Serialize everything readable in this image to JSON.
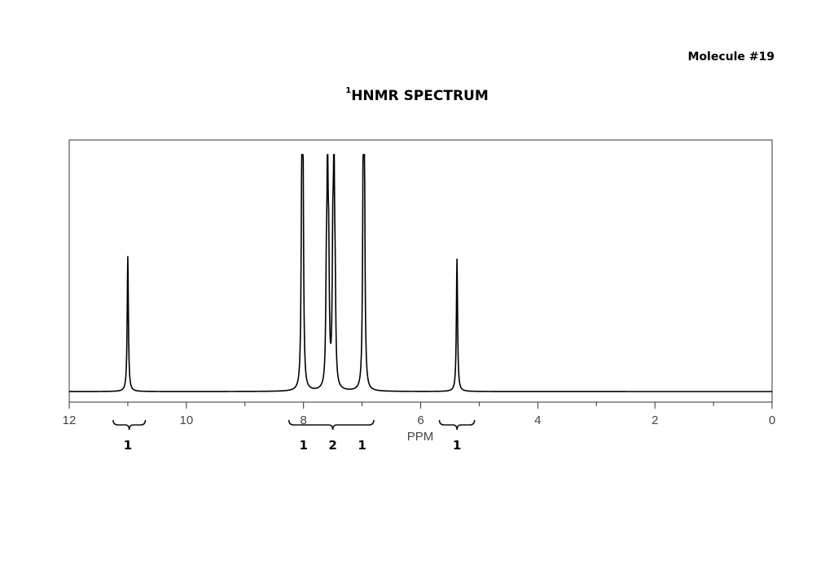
{
  "header": {
    "molecule": "Molecule #19",
    "title_sup": "1",
    "title_main": "HNMR SPECTRUM"
  },
  "chart_data": {
    "type": "line",
    "xlabel": "PPM",
    "ylabel": "",
    "xlim": [
      12,
      0
    ],
    "ylim": [
      0,
      1
    ],
    "x_reversed": true,
    "grid": false,
    "x_ticks_labeled": [
      12,
      10,
      8,
      6,
      4,
      2,
      0
    ],
    "peaks": [
      {
        "ppm": 11.0,
        "height": 0.56
      },
      {
        "ppm": 8.03,
        "height": 0.8
      },
      {
        "ppm": 8.01,
        "height": 0.95
      },
      {
        "ppm": 7.61,
        "height": 0.37
      },
      {
        "ppm": 7.59,
        "height": 0.85
      },
      {
        "ppm": 7.57,
        "height": 0.45
      },
      {
        "ppm": 7.5,
        "height": 0.5
      },
      {
        "ppm": 7.48,
        "height": 0.88
      },
      {
        "ppm": 7.46,
        "height": 0.32
      },
      {
        "ppm": 6.98,
        "height": 0.95
      },
      {
        "ppm": 6.96,
        "height": 0.8
      },
      {
        "ppm": 5.38,
        "height": 0.55
      }
    ],
    "integrations": [
      {
        "from": 11.25,
        "to": 10.7,
        "label": "1"
      },
      {
        "from": 8.25,
        "to": 7.2,
        "label": "1"
      },
      {
        "from": 7.6,
        "to": 7.0,
        "label": "2"
      },
      {
        "from": 7.2,
        "to": 6.8,
        "label": "1"
      },
      {
        "from": 5.68,
        "to": 5.08,
        "label": "1"
      }
    ],
    "integration_label_ppm": [
      11.0,
      8.0,
      7.5,
      7.0,
      5.38
    ]
  }
}
